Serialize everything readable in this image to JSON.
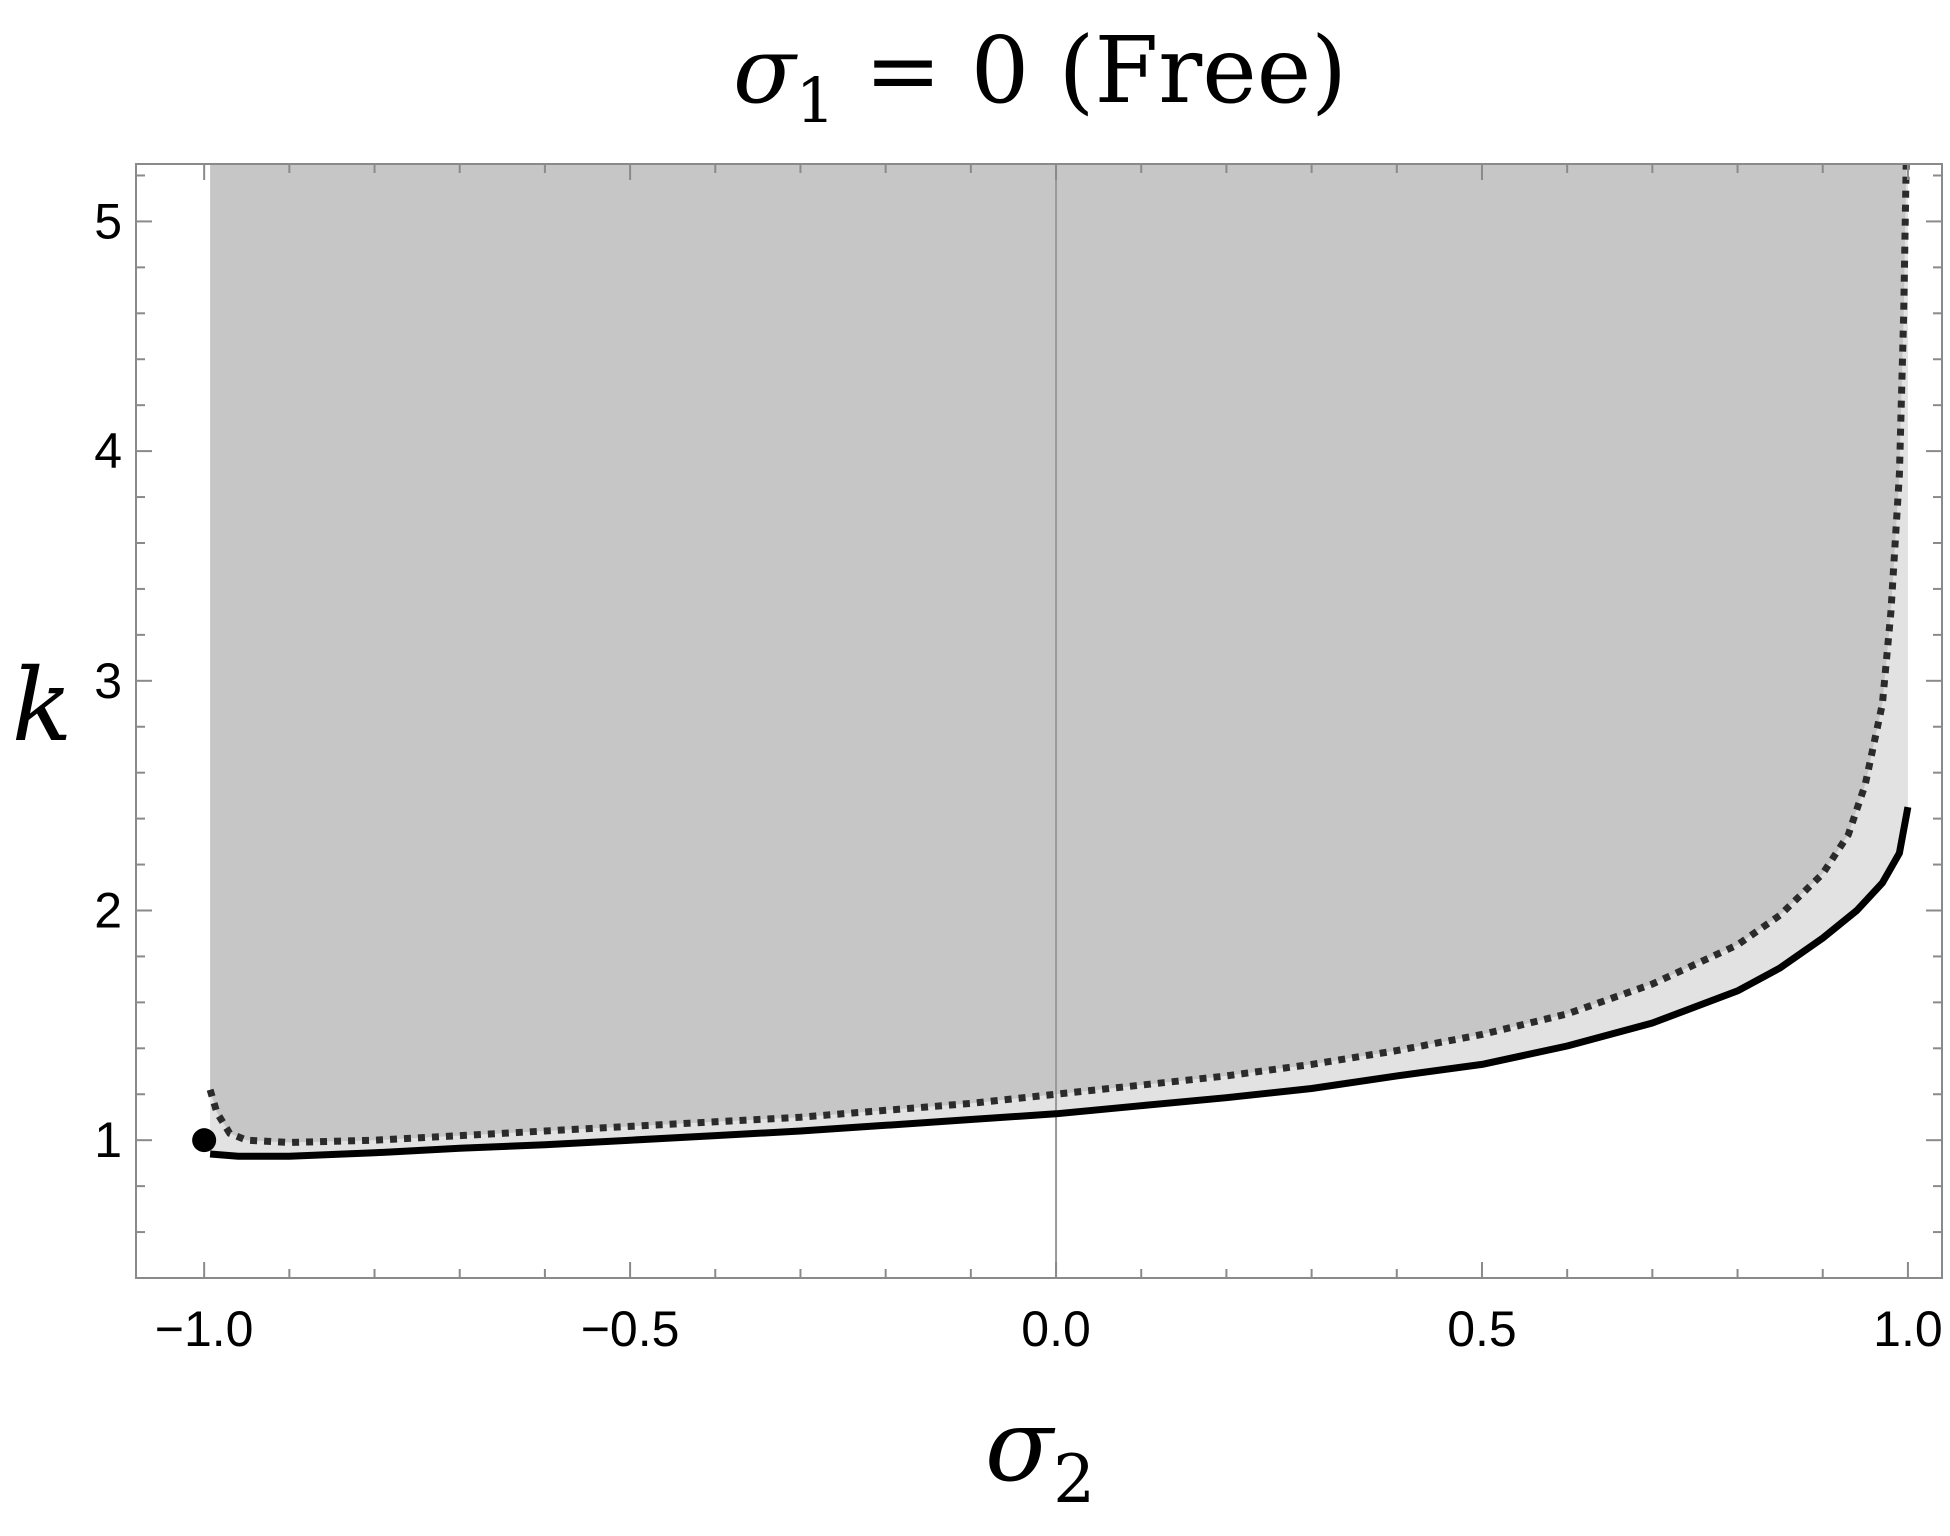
{
  "chart_data": {
    "type": "line",
    "title_parts": {
      "symbol": "σ",
      "subscript": "1",
      "rest": " = 0 (Free)"
    },
    "xlabel_parts": {
      "symbol": "σ",
      "subscript": "2"
    },
    "ylabel": "k",
    "xlim": [
      -1.08,
      1.04
    ],
    "ylim": [
      0.4,
      5.25
    ],
    "x_ticks": [
      {
        "value": -1.0,
        "label": "−1.0"
      },
      {
        "value": -0.5,
        "label": "−0.5"
      },
      {
        "value": 0.0,
        "label": "0.0"
      },
      {
        "value": 0.5,
        "label": "0.5"
      },
      {
        "value": 1.0,
        "label": "1.0"
      }
    ],
    "y_ticks": [
      {
        "value": 1,
        "label": "1"
      },
      {
        "value": 2,
        "label": "2"
      },
      {
        "value": 3,
        "label": "3"
      },
      {
        "value": 4,
        "label": "4"
      },
      {
        "value": 5,
        "label": "5"
      }
    ],
    "x_minor_step": 0.1,
    "y_minor_step": 0.2,
    "grid": false,
    "colors": {
      "dark_region": "#c6c6c6",
      "light_region": "#e2e2e2",
      "solid_line": "#000000",
      "dotted_line": "#2b2b2b",
      "axis_line": "#999999",
      "frame": "#8a8a8a"
    },
    "series": [
      {
        "style": "solid",
        "x": [
          -0.993,
          -0.96,
          -0.9,
          -0.8,
          -0.7,
          -0.6,
          -0.5,
          -0.4,
          -0.3,
          -0.2,
          -0.1,
          0.0,
          0.1,
          0.2,
          0.3,
          0.4,
          0.5,
          0.6,
          0.7,
          0.8,
          0.85,
          0.9,
          0.94,
          0.97,
          0.99,
          1.0
        ],
        "y": [
          0.94,
          0.93,
          0.93,
          0.945,
          0.965,
          0.98,
          1.0,
          1.02,
          1.04,
          1.065,
          1.09,
          1.115,
          1.15,
          1.185,
          1.225,
          1.28,
          1.33,
          1.41,
          1.51,
          1.65,
          1.75,
          1.88,
          2.0,
          2.12,
          2.25,
          2.45
        ]
      },
      {
        "style": "dotted",
        "x": [
          -0.993,
          -0.985,
          -0.97,
          -0.95,
          -0.9,
          -0.8,
          -0.7,
          -0.6,
          -0.5,
          -0.4,
          -0.3,
          -0.2,
          -0.1,
          0.0,
          0.1,
          0.2,
          0.3,
          0.4,
          0.5,
          0.6,
          0.7,
          0.8,
          0.85,
          0.9,
          0.93,
          0.95,
          0.97,
          0.98,
          0.99,
          0.995,
          0.998
        ],
        "y": [
          1.22,
          1.12,
          1.03,
          1.0,
          0.99,
          1.0,
          1.02,
          1.04,
          1.06,
          1.08,
          1.1,
          1.13,
          1.16,
          1.2,
          1.24,
          1.28,
          1.33,
          1.39,
          1.46,
          1.55,
          1.68,
          1.85,
          1.98,
          2.16,
          2.33,
          2.55,
          2.9,
          3.3,
          3.9,
          4.6,
          5.25
        ]
      }
    ],
    "marker": {
      "x": -1.0,
      "y": 1.0
    }
  }
}
